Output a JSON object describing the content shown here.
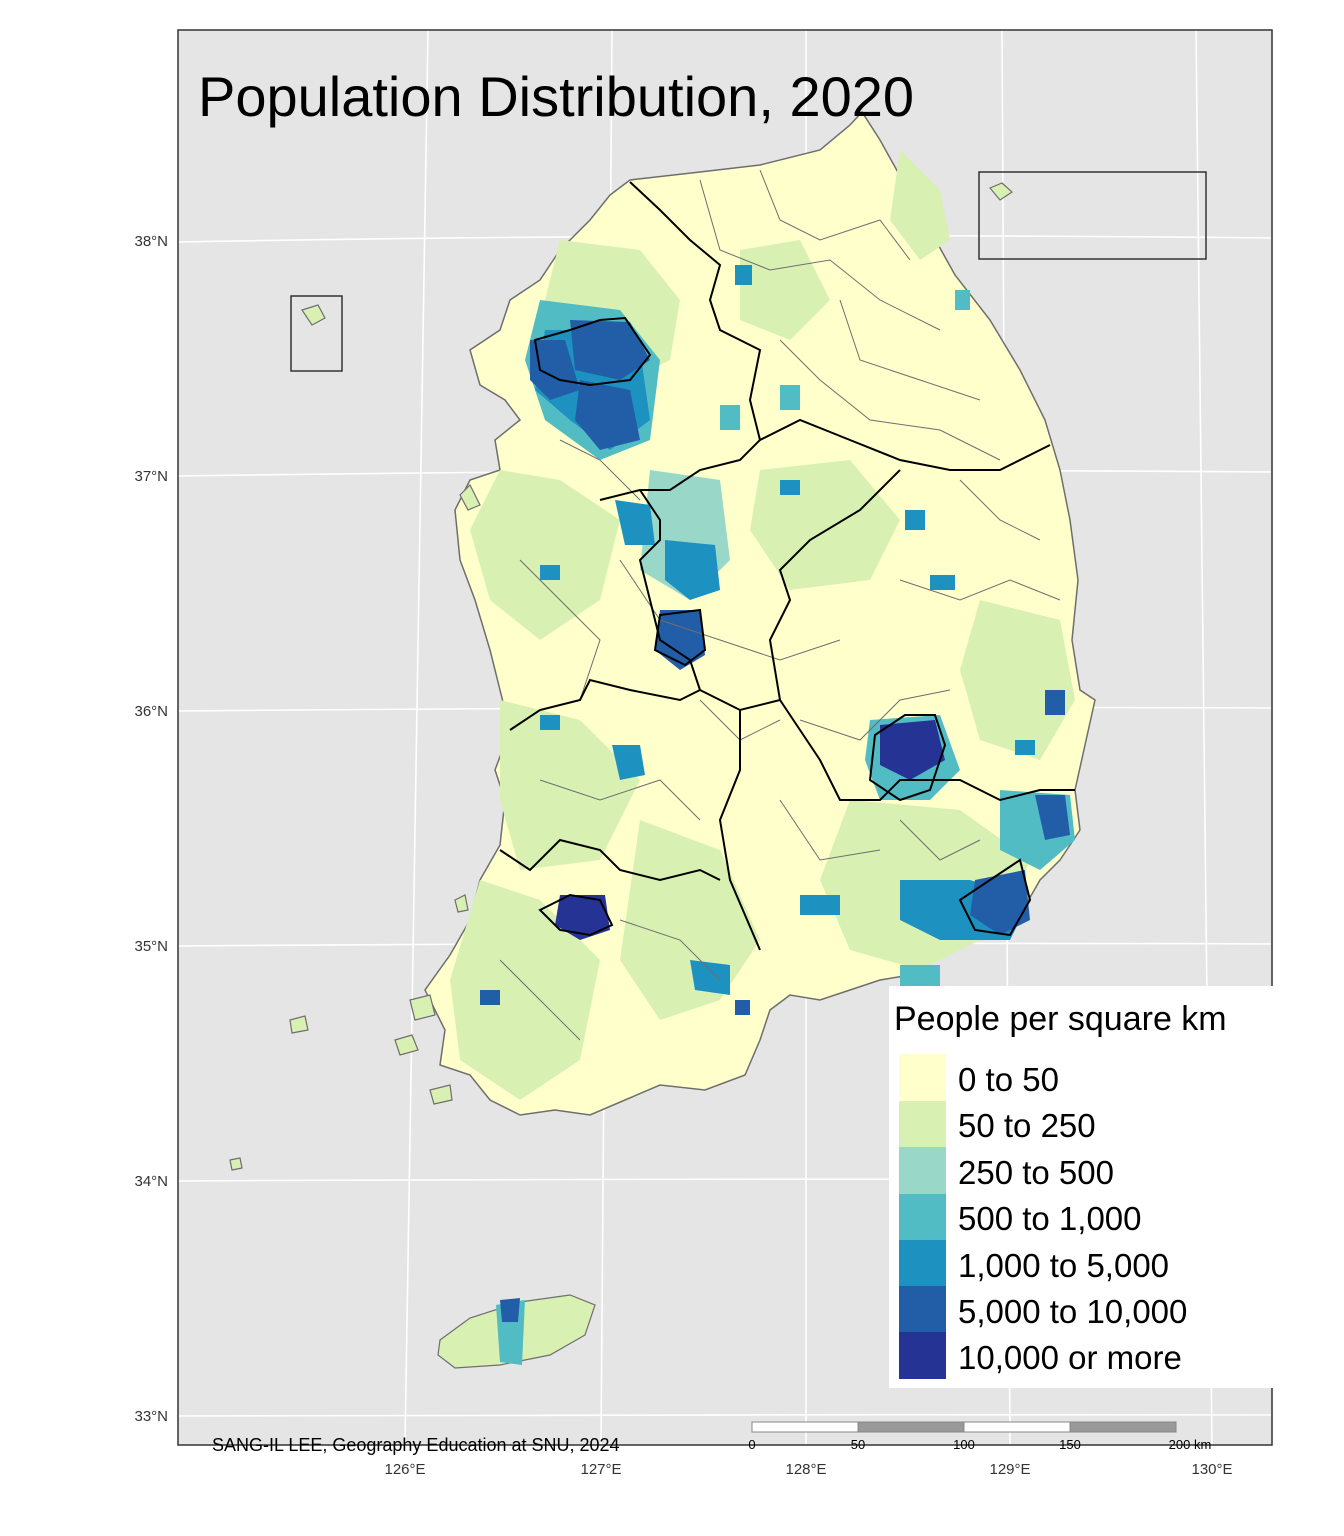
{
  "title": "Population Distribution, 2020",
  "credit": "SANG-IL LEE, Geography Education at SNU, 2024",
  "axes": {
    "lat_labels": [
      "38°N",
      "37°N",
      "36°N",
      "35°N",
      "34°N",
      "33°N"
    ],
    "lon_labels": [
      "126°E",
      "127°E",
      "128°E",
      "129°E",
      "130°E"
    ]
  },
  "scale_bar": {
    "ticks": [
      "0",
      "50",
      "100",
      "150",
      "200 km"
    ]
  },
  "legend": {
    "title": "People per square km",
    "items": [
      {
        "label": "0 to 50",
        "color": "#ffffcc"
      },
      {
        "label": "50 to 250",
        "color": "#d9f0b3"
      },
      {
        "label": "250 to 500",
        "color": "#99d8c9"
      },
      {
        "label": "500 to 1,000",
        "color": "#52bcc4"
      },
      {
        "label": "1,000 to 5,000",
        "color": "#1d91c0"
      },
      {
        "label": "5,000 to 10,000",
        "color": "#225ea8"
      },
      {
        "label": "10,000 or more",
        "color": "#253494"
      }
    ]
  },
  "colors": {
    "panel_background": "#e5e5e5",
    "graticule": "#ffffff",
    "district_border": "#6e6e6e",
    "province_border": "#000000"
  }
}
